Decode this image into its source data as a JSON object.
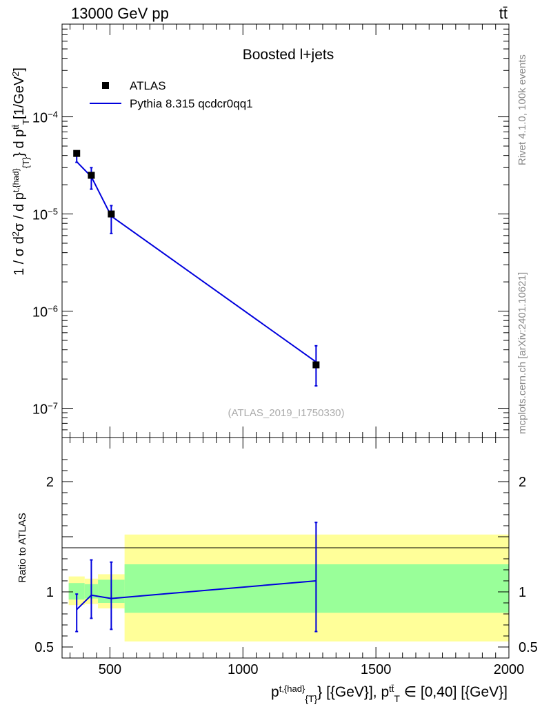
{
  "header": {
    "energy_label": "13000 GeV pp",
    "process_label": "tt̄"
  },
  "side_labels": {
    "rivet": "Rivet 4.1.0,  100k events",
    "mcplots": "mcplots.cern.ch [arXiv:2401.10621]"
  },
  "colors": {
    "mc_line": "#0000dd",
    "data_marker": "#000000",
    "band_inner": "#99ff99",
    "band_outer": "#ffff99"
  },
  "chart_data": [
    {
      "type": "scatter",
      "title": "Boosted l+jets",
      "watermark": "(ATLAS_2019_I1750330)",
      "ylabel": "1 / σ d²σ / d p_T^{t,{had}} d p_T^{tt̄} [1/GeV²]",
      "yscale": "log",
      "xlim": [
        320,
        2000
      ],
      "ylim": [
        5e-08,
        0.0009
      ],
      "y_ticks": [
        {
          "value": 1e-07,
          "mant": "10",
          "exp": "−7"
        },
        {
          "value": 1e-06,
          "mant": "10",
          "exp": "−6"
        },
        {
          "value": 1e-05,
          "mant": "10",
          "exp": "−5"
        },
        {
          "value": 0.0001,
          "mant": "10",
          "exp": "−4"
        }
      ],
      "legend": [
        {
          "label": "ATLAS",
          "kind": "marker"
        },
        {
          "label": "Pythia 8.315 qcdcr0qq1",
          "kind": "line"
        }
      ],
      "series": [
        {
          "name": "ATLAS",
          "x": [
            375,
            430,
            505,
            1275
          ],
          "xerr": [
            [
              30,
              30
            ],
            [
              25,
              25
            ],
            [
              50,
              50
            ],
            [
              725,
              725
            ]
          ],
          "y": [
            4.2e-05,
            2.5e-05,
            1e-05,
            2.8e-07
          ],
          "yerr_low": [
            3.4e-05,
            1.8e-05,
            6.3e-06,
            1.7e-07
          ],
          "yerr_high": [
            4.3e-05,
            3e-05,
            1.22e-05,
            4.4e-07
          ]
        },
        {
          "name": "Pythia 8.315 qcdcr0qq1",
          "x": [
            375,
            430,
            505,
            1275
          ],
          "y": [
            3.45e-05,
            2.42e-05,
            9.5e-06,
            3e-07
          ]
        }
      ]
    },
    {
      "type": "line",
      "ylabel": "Ratio to ATLAS",
      "xlabel": "p_T^{t,{had}} [{GeV}], p_T^{tt̄} ∈ [0,40] [{GeV}]",
      "xlim": [
        320,
        2000
      ],
      "ylim": [
        0.4,
        2.4
      ],
      "x_ticks": [
        500,
        1000,
        1500,
        2000
      ],
      "y_ticks": [
        0.5,
        1,
        2
      ],
      "bands": [
        {
          "x": [
            345,
            405
          ],
          "inner": [
            0.93,
            1.08
          ],
          "outer": [
            0.88,
            1.14
          ]
        },
        {
          "x": [
            405,
            455
          ],
          "inner": [
            0.94,
            1.07
          ],
          "outer": [
            0.89,
            1.12
          ]
        },
        {
          "x": [
            455,
            555
          ],
          "inner": [
            0.9,
            1.11
          ],
          "outer": [
            0.85,
            1.16
          ]
        },
        {
          "x": [
            555,
            2000
          ],
          "inner": [
            0.81,
            1.25
          ],
          "outer": [
            0.55,
            1.52
          ]
        }
      ],
      "series": [
        {
          "name": "Pythia 8.315 qcdcr0qq1",
          "x": [
            375,
            430,
            505,
            1275
          ],
          "y": [
            0.84,
            0.97,
            0.94,
            1.1
          ],
          "yerr_low": [
            0.64,
            0.76,
            0.66,
            0.64
          ],
          "yerr_high": [
            0.98,
            1.29,
            1.27,
            1.63
          ]
        }
      ]
    }
  ]
}
